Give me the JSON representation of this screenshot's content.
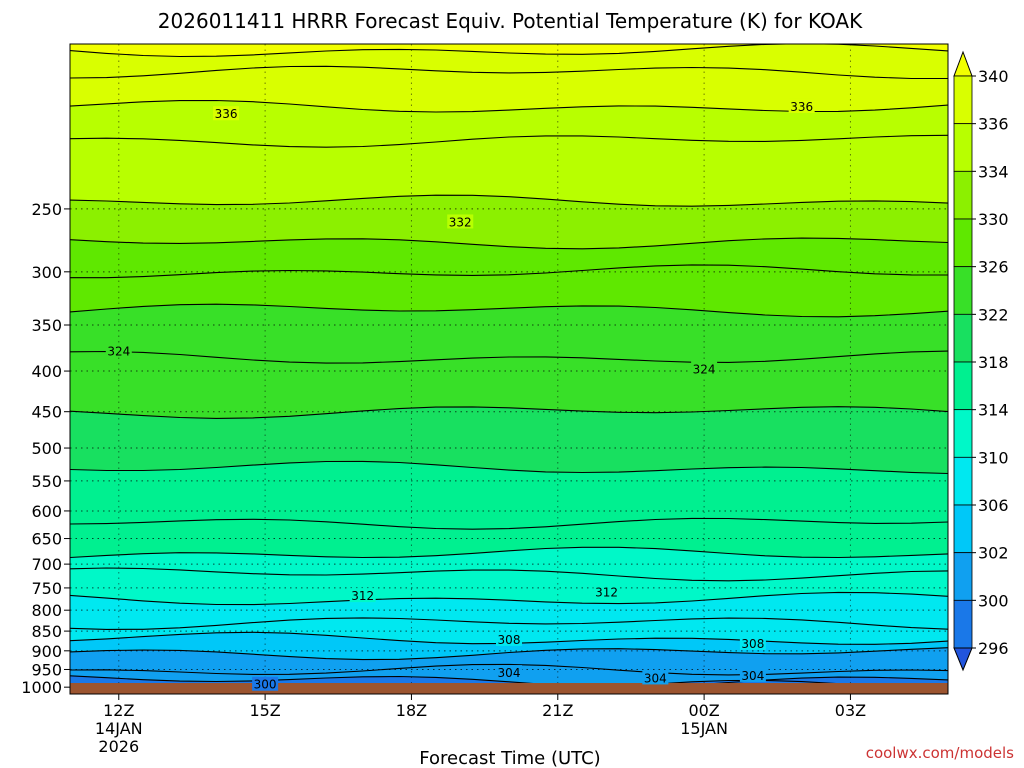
{
  "chart_data": {
    "type": "heatmap",
    "title": "2026011411 HRRR Forecast Equiv. Potential Temperature (K) for KOAK",
    "xlabel": "Forecast Time (UTC)",
    "ylabel": "",
    "credit": "coolwx.com/models",
    "x_ticks": [
      {
        "hour": 0,
        "lines": [
          "12Z",
          "14JAN",
          "2026"
        ]
      },
      {
        "hour": 3,
        "lines": [
          "15Z"
        ]
      },
      {
        "hour": 6,
        "lines": [
          "18Z"
        ]
      },
      {
        "hour": 9,
        "lines": [
          "21Z"
        ]
      },
      {
        "hour": 12,
        "lines": [
          "00Z",
          "15JAN"
        ]
      },
      {
        "hour": 15,
        "lines": [
          "03Z"
        ]
      }
    ],
    "xlim_hours": [
      -1,
      17
    ],
    "y_axis": {
      "scale": "log",
      "ylim_hPa": [
        1020,
        155
      ]
    },
    "y_ticks": [
      250,
      300,
      350,
      400,
      450,
      500,
      550,
      600,
      650,
      700,
      750,
      800,
      850,
      900,
      950,
      1000
    ],
    "colorbar": {
      "labels": [
        340,
        336,
        334,
        330,
        326,
        322,
        318,
        314,
        310,
        306,
        302,
        300,
        296
      ],
      "colors": [
        "#f2ff00",
        "#d9ff00",
        "#b8ff00",
        "#8cf000",
        "#5fe800",
        "#38e028",
        "#18e060",
        "#00f090",
        "#00f8c8",
        "#00e8f0",
        "#00c8f8",
        "#10a0f0",
        "#1a78e8",
        "#2255dd"
      ]
    },
    "contour_labels": [
      {
        "value": 336,
        "x_hour": 2.2,
        "p_hPa": 190
      },
      {
        "value": 336,
        "x_hour": 14.0,
        "p_hPa": 186
      },
      {
        "value": 332,
        "x_hour": 7.0,
        "p_hPa": 260
      },
      {
        "value": 324,
        "x_hour": 0.0,
        "p_hPa": 378
      },
      {
        "value": 324,
        "x_hour": 12.0,
        "p_hPa": 398
      },
      {
        "value": 312,
        "x_hour": 5.0,
        "p_hPa": 768
      },
      {
        "value": 312,
        "x_hour": 10.0,
        "p_hPa": 760
      },
      {
        "value": 308,
        "x_hour": 8.0,
        "p_hPa": 872
      },
      {
        "value": 308,
        "x_hour": 13.0,
        "p_hPa": 882
      },
      {
        "value": 304,
        "x_hour": 8.0,
        "p_hPa": 960
      },
      {
        "value": 304,
        "x_hour": 13.0,
        "p_hPa": 968
      },
      {
        "value": 304,
        "x_hour": 11.0,
        "p_hPa": 975
      },
      {
        "value": 300,
        "x_hour": 3.0,
        "p_hPa": 993
      }
    ],
    "isotherm_profile": [
      {
        "value": 340,
        "p_hPa": 158
      },
      {
        "value": 338,
        "p_hPa": 168
      },
      {
        "value": 336,
        "p_hPa": 186
      },
      {
        "value": 334,
        "p_hPa": 205
      },
      {
        "value": 332,
        "p_hPa": 245
      },
      {
        "value": 330,
        "p_hPa": 275
      },
      {
        "value": 328,
        "p_hPa": 300
      },
      {
        "value": 326,
        "p_hPa": 335
      },
      {
        "value": 324,
        "p_hPa": 385
      },
      {
        "value": 322,
        "p_hPa": 450
      },
      {
        "value": 320,
        "p_hPa": 530
      },
      {
        "value": 318,
        "p_hPa": 620
      },
      {
        "value": 316,
        "p_hPa": 680
      },
      {
        "value": 314,
        "p_hPa": 720
      },
      {
        "value": 312,
        "p_hPa": 775
      },
      {
        "value": 310,
        "p_hPa": 830
      },
      {
        "value": 308,
        "p_hPa": 870
      },
      {
        "value": 306,
        "p_hPa": 905
      },
      {
        "value": 304,
        "p_hPa": 955
      },
      {
        "value": 302,
        "p_hPa": 980
      },
      {
        "value": 300,
        "p_hPa": 1000
      }
    ],
    "surface_color": "#9c5530"
  }
}
